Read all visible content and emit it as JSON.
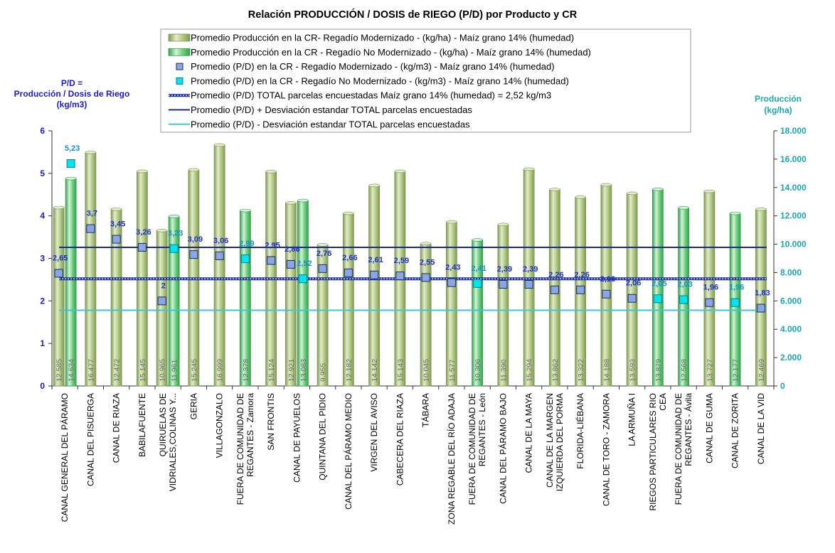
{
  "chart_data": {
    "type": "bar",
    "title": "Relación PRODUCCIÓN / DOSIS de RIEGO (P/D) por Producto y CR",
    "left_axis_title": [
      "P/D =",
      "Producción / Dosis  de Riego",
      "(kg/m3)"
    ],
    "right_axis_title": [
      "Producción",
      "(kg/ha)"
    ],
    "left_ylim": [
      0,
      6
    ],
    "left_ticks": [
      "0",
      "1",
      "2",
      "3",
      "4",
      "5",
      "6"
    ],
    "right_ylim": [
      0,
      18000
    ],
    "right_ticks": [
      "0",
      "2.000",
      "4.000",
      "6.000",
      "8.000",
      "10.000",
      "12.000",
      "14.000",
      "16.000",
      "18.000"
    ],
    "legend": [
      "Promedio Producción en la CR- Regadío Modernizado -  (kg/ha) - Maíz grano 14% (humedad)",
      "Promedio Producción en la CR - Regadío No Modernizado -  (kg/ha) - Maíz grano 14% (humedad)",
      "Promedio (P/D) en la CR - Regadío Modernizado - (kg/m3) - Maíz grano 14% (humedad)",
      "Promedio (P/D) en la CR - Regadío No Modernizado - (kg/m3) - Maíz grano 14% (humedad)",
      "Promedio (P/D) TOTAL parcelas encuestadas Maíz grano 14% (humedad) = 2,52 kg/m3",
      "Promedio (P/D) + Desviación estandar TOTAL parcelas encuestadas",
      "Promedio (P/D) - Desviación estandar TOTAL parcelas encuestadas"
    ],
    "categories": [
      [
        "CANAL GENERAL DEL PÁRAMO"
      ],
      [
        "CANAL DEL PISUERGA"
      ],
      [
        "CANAL DE RIAZA"
      ],
      [
        "BABILAFUENTE"
      ],
      [
        "QUIRUELAS DE",
        "VIDRIALES,COLINAS Y..."
      ],
      [
        "GERIA"
      ],
      [
        "VILLAGONZALO"
      ],
      [
        "FUERA DE COMUNIDAD DE",
        "REGANTES - Zamora"
      ],
      [
        "SAN FRONTIS"
      ],
      [
        "CANAL DE PAYUELOS"
      ],
      [
        "QUINTANA DEL PIDIO"
      ],
      [
        "CANAL DEL PÁRAMO MEDIO"
      ],
      [
        "VIRGEN DEL AVISO"
      ],
      [
        "CABECERA DEL RIAZA"
      ],
      [
        "TÁBARA"
      ],
      [
        "ZONA REGABLE DEL RÍO ADAJA"
      ],
      [
        "FUERA DE COMUNIDAD DE",
        "REGANTES - León"
      ],
      [
        "CANAL DEL PÁRAMO BAJO"
      ],
      [
        "CANAL DE LA MAYA"
      ],
      [
        "CANAL DE LA MARGEN",
        "IZQUIERDA DEL PORMA"
      ],
      [
        "FLORIDA-LIÉBANA"
      ],
      [
        "CANAL DE TORO - ZAMORA"
      ],
      [
        "LA ARMUÑA I"
      ],
      [
        "RIEGOS PARTICULARES RIO",
        "CEA"
      ],
      [
        "FUERA DE COMUNIDAD DE",
        "REGANTES - Ávila"
      ],
      [
        "CANAL DE GUMA"
      ],
      [
        "CANAL DE ZORITA"
      ],
      [
        "CANAL DE LA VID"
      ]
    ],
    "series": [
      {
        "name": "Producción Modernizado (kg/ha)",
        "values": [
          12585,
          16477,
          12472,
          15145,
          10965,
          15245,
          16999,
          null,
          15124,
          12921,
          9955,
          12182,
          14142,
          15143,
          10045,
          11577,
          null,
          11390,
          15294,
          13862,
          13322,
          14188,
          13593,
          null,
          null,
          13727,
          null,
          12469
        ],
        "labels": [
          "12.585",
          "16.477",
          "12.472",
          "15.145",
          "10.965",
          "15.245",
          "16.999",
          null,
          "15.124",
          "12.921",
          "9.955",
          "12.182",
          "14.142",
          "15.143",
          "10.045",
          "11.577",
          null,
          "11.390",
          "15.294",
          "13.862",
          "13.322",
          "14.188",
          "13.593",
          null,
          null,
          "13.727",
          null,
          "12.469"
        ]
      },
      {
        "name": "Producción No Modernizado (kg/ha)",
        "values": [
          14634,
          null,
          null,
          null,
          11961,
          null,
          null,
          12378,
          null,
          13083,
          null,
          null,
          null,
          null,
          null,
          null,
          10306,
          null,
          null,
          null,
          null,
          null,
          null,
          13879,
          12568,
          null,
          12177,
          null
        ],
        "labels": [
          "14.634",
          null,
          null,
          null,
          "11.961",
          null,
          null,
          "12.378",
          null,
          "13.083",
          null,
          null,
          null,
          null,
          null,
          null,
          "10.306",
          null,
          null,
          null,
          null,
          null,
          null,
          "13.879",
          "12.568",
          null,
          "12.177",
          null
        ]
      },
      {
        "name": "P/D Modernizado (kg/m3)",
        "values": [
          2.65,
          3.7,
          3.45,
          3.26,
          2,
          3.09,
          3.06,
          null,
          2.95,
          2.86,
          2.76,
          2.66,
          2.61,
          2.59,
          2.55,
          2.43,
          null,
          2.39,
          2.39,
          2.26,
          2.26,
          2.16,
          2.06,
          null,
          null,
          1.96,
          null,
          1.83
        ],
        "labels": [
          "2,65",
          "3,7",
          "3,45",
          "3,26",
          "2",
          "3,09",
          "3,06",
          null,
          "2,95",
          "2,86",
          "2,76",
          "2,66",
          "2,61",
          "2,59",
          "2,55",
          "2,43",
          null,
          "2,39",
          "2,39",
          "2,26",
          "2,26",
          "2,16",
          "2,06",
          null,
          null,
          "1,96",
          null,
          "1,83"
        ]
      },
      {
        "name": "P/D No Modernizado (kg/m3)",
        "values": [
          5.23,
          null,
          null,
          null,
          3.23,
          null,
          null,
          2.99,
          null,
          2.52,
          null,
          null,
          null,
          null,
          null,
          null,
          2.41,
          null,
          null,
          null,
          null,
          null,
          null,
          2.05,
          2.03,
          null,
          1.96,
          null
        ],
        "labels": [
          "5,23",
          null,
          null,
          null,
          "3,23",
          null,
          null,
          "2,99",
          null,
          "2,52",
          null,
          null,
          null,
          null,
          null,
          null,
          "2,41",
          null,
          null,
          null,
          null,
          null,
          null,
          "2,05",
          "2,03",
          null,
          "1,96",
          null
        ]
      }
    ],
    "lines": {
      "mean": 2.52,
      "plus_sd": 3.26,
      "minus_sd": 1.78
    },
    "colors": {
      "bar_mod": "#a9c278",
      "bar_mod_light": "#e4eccb",
      "bar_mod_dark": "#7f9a55",
      "bar_nomod": "#5fcc72",
      "bar_nomod_light": "#d5f2da",
      "bar_nomod_dark": "#36a14c",
      "marker_mod": "#8aa6e6",
      "marker_nomod": "#00e5ee",
      "mean_line": "#1a2fa8",
      "plus_line": "#1a2890",
      "minus_line": "#3cc6d8",
      "left_axis": "#1a1ad0",
      "right_axis": "#1aa6b3"
    }
  }
}
